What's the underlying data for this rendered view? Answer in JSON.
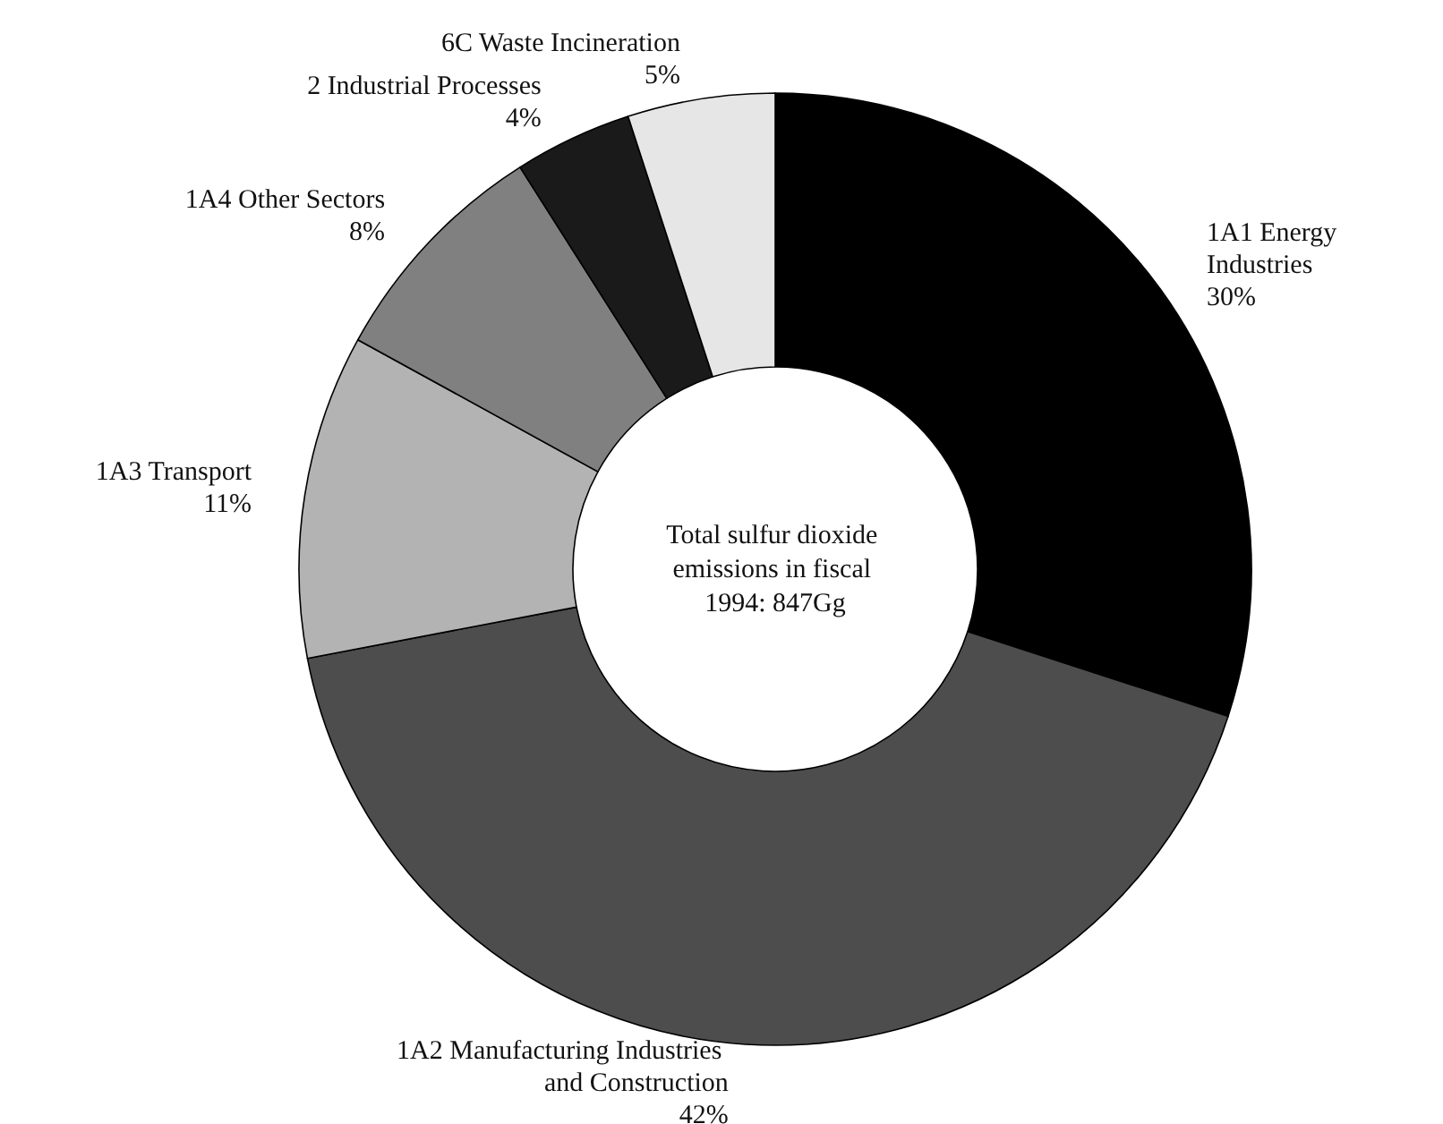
{
  "chart_data": {
    "type": "donut",
    "categories": [
      "1A1 Energy Industries",
      "1A2 Manufacturing Industries and Construction",
      "1A3 Transport",
      "1A4 Other Sectors",
      "2 Industrial Processes",
      "6C Waste Incineration"
    ],
    "values": [
      30,
      42,
      11,
      8,
      4,
      5
    ],
    "colors": [
      "#000000",
      "#4d4d4d",
      "#b3b3b3",
      "#808080",
      "#1a1a1a",
      "#e6e6e6"
    ],
    "value_labels": [
      "30%",
      "42%",
      "11%",
      "8%",
      "4%",
      "5%"
    ],
    "legend": false,
    "annotations": [
      "Total sulfur dioxide emissions in fiscal 1994: 847Gg"
    ]
  }
}
